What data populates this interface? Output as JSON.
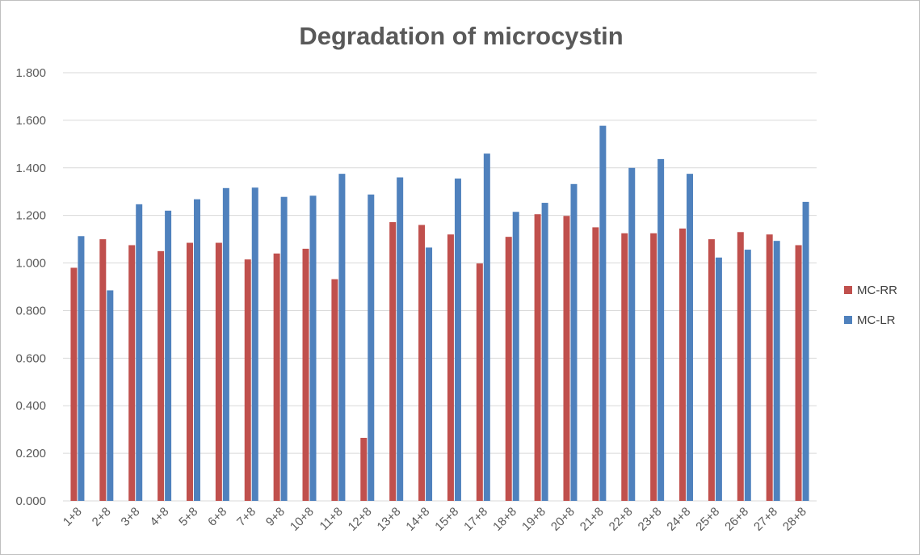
{
  "chart_data": {
    "type": "bar",
    "title": "Degradation of microcystin",
    "xlabel": "",
    "ylabel": "",
    "ylim": [
      0,
      1.8
    ],
    "y_ticks": [
      "0.000",
      "0.200",
      "0.400",
      "0.600",
      "0.800",
      "1.000",
      "1.200",
      "1.400",
      "1.600",
      "1.800"
    ],
    "grid": true,
    "legend_position": "right",
    "categories": [
      "1+8",
      "2+8",
      "3+8",
      "4+8",
      "5+8",
      "6+8",
      "7+8",
      "9+8",
      "10+8",
      "11+8",
      "12+8",
      "13+8",
      "14+8",
      "15+8",
      "17+8",
      "18+8",
      "19+8",
      "20+8",
      "21+8",
      "22+8",
      "23+8",
      "24+8",
      "25+8",
      "26+8",
      "27+8",
      "28+8"
    ],
    "series": [
      {
        "name": "MC-RR",
        "color": "#C0504D",
        "values": [
          0.98,
          1.1,
          1.075,
          1.05,
          1.085,
          1.085,
          1.015,
          1.04,
          1.06,
          0.932,
          0.265,
          1.172,
          1.16,
          1.12,
          0.998,
          1.11,
          1.205,
          1.198,
          1.15,
          1.125,
          1.125,
          1.145,
          1.1,
          1.13,
          1.12,
          1.075
        ]
      },
      {
        "name": "MC-LR",
        "color": "#4F81BD",
        "values": [
          1.113,
          0.885,
          1.247,
          1.22,
          1.268,
          1.315,
          1.317,
          1.278,
          1.283,
          1.375,
          1.288,
          1.36,
          1.065,
          1.355,
          1.46,
          1.215,
          1.253,
          1.332,
          1.577,
          1.4,
          1.437,
          1.375,
          1.023,
          1.056,
          1.093,
          1.257
        ]
      }
    ]
  }
}
